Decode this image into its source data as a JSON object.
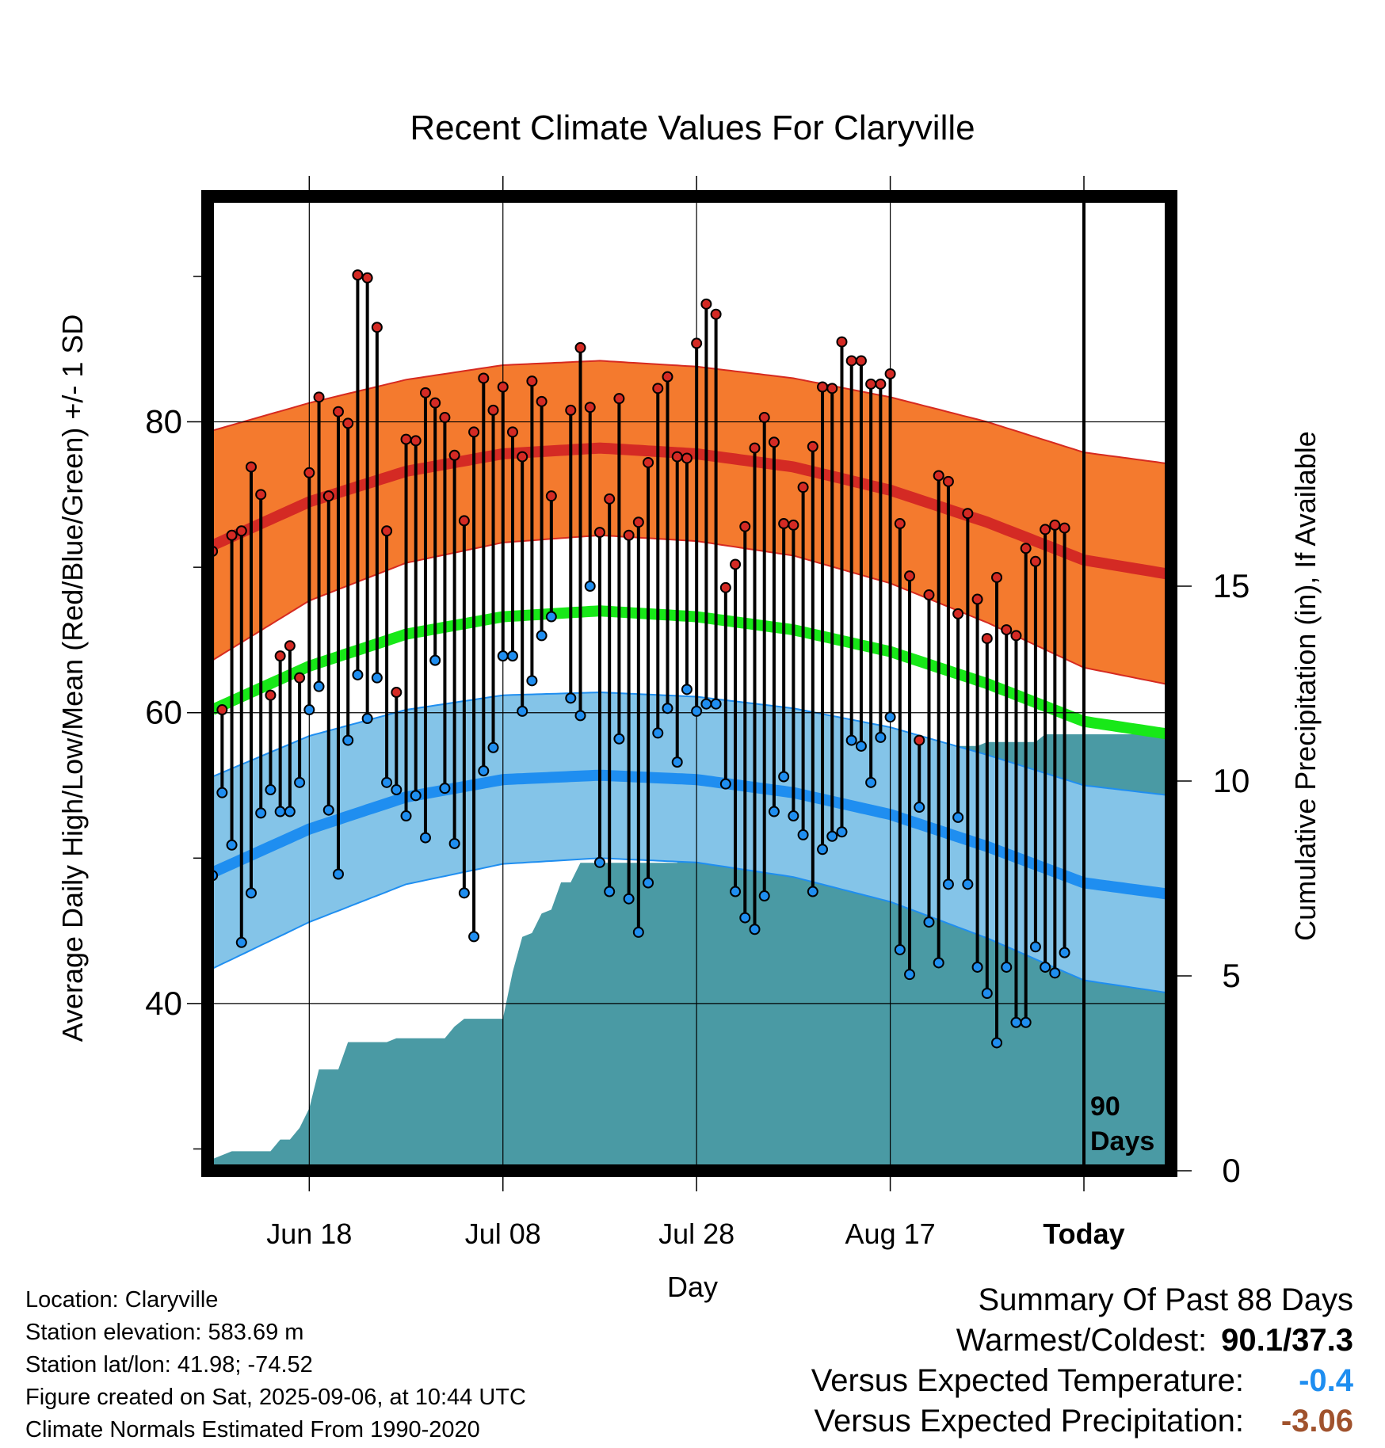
{
  "chart_data": {
    "type": "line",
    "title": "Recent Climate Values For Claryville",
    "xlabel": "Day",
    "ylabel": "Average Daily High/Low/Mean (Red/Blue/Green) +/- 1 SD",
    "y2label": "Cumulative Precipitation (in), If Available",
    "x_tick_labels": [
      "Jun 18",
      "Jul 08",
      "Jul 28",
      "Aug 17",
      "Today"
    ],
    "x_tick_days": [
      10,
      30,
      50,
      70,
      90
    ],
    "ylim": [
      28.5,
      95.5
    ],
    "y_ticks": [
      40,
      60,
      80
    ],
    "y_minor_ticks": [
      30,
      50,
      70,
      90
    ],
    "y2lim": [
      0,
      25
    ],
    "y2_ticks": [
      0,
      5,
      10,
      15
    ],
    "xlim": [
      -0.5,
      99
    ],
    "today_day": 90,
    "window_label": "90 Days",
    "grid": true,
    "colors": {
      "high_band": "#f47a2e",
      "high_band_edge": "#d62a20",
      "high_mean": "#d42a24",
      "mean_line": "#18e818",
      "low_band": "#84c4e8",
      "low_band_edge": "#1f8ef0",
      "low_mean": "#1f8ef0",
      "precip": "#4a9aa4",
      "high_marker": "#d42a24",
      "low_marker": "#1f8ef0"
    },
    "normal_high": [
      {
        "day": 0,
        "mean": 71.5,
        "sd": 7.9
      },
      {
        "day": 10,
        "mean": 74.5,
        "sd": 6.8
      },
      {
        "day": 20,
        "mean": 76.6,
        "sd": 6.3
      },
      {
        "day": 30,
        "mean": 77.8,
        "sd": 6.1
      },
      {
        "day": 40,
        "mean": 78.2,
        "sd": 6.0
      },
      {
        "day": 50,
        "mean": 77.8,
        "sd": 6.0
      },
      {
        "day": 60,
        "mean": 76.9,
        "sd": 6.1
      },
      {
        "day": 70,
        "mean": 75.3,
        "sd": 6.4
      },
      {
        "day": 80,
        "mean": 73.1,
        "sd": 6.9
      },
      {
        "day": 90,
        "mean": 70.5,
        "sd": 7.4
      },
      {
        "day": 99,
        "mean": 69.5,
        "sd": 7.6
      }
    ],
    "normal_low": [
      {
        "day": 0,
        "mean": 49.0,
        "sd": 6.6
      },
      {
        "day": 10,
        "mean": 52.0,
        "sd": 6.4
      },
      {
        "day": 20,
        "mean": 54.2,
        "sd": 6.0
      },
      {
        "day": 30,
        "mean": 55.4,
        "sd": 5.8
      },
      {
        "day": 40,
        "mean": 55.7,
        "sd": 5.7
      },
      {
        "day": 50,
        "mean": 55.4,
        "sd": 5.7
      },
      {
        "day": 60,
        "mean": 54.5,
        "sd": 5.8
      },
      {
        "day": 70,
        "mean": 53.0,
        "sd": 6.0
      },
      {
        "day": 80,
        "mean": 50.8,
        "sd": 6.3
      },
      {
        "day": 90,
        "mean": 48.3,
        "sd": 6.7
      },
      {
        "day": 99,
        "mean": 47.5,
        "sd": 6.8
      }
    ],
    "normal_mean": [
      {
        "day": 0,
        "mean": 60.2
      },
      {
        "day": 10,
        "mean": 63.2
      },
      {
        "day": 20,
        "mean": 65.4
      },
      {
        "day": 30,
        "mean": 66.6
      },
      {
        "day": 40,
        "mean": 67.0
      },
      {
        "day": 50,
        "mean": 66.6
      },
      {
        "day": 60,
        "mean": 65.7
      },
      {
        "day": 70,
        "mean": 64.2
      },
      {
        "day": 80,
        "mean": 62.0
      },
      {
        "day": 90,
        "mean": 59.4
      },
      {
        "day": 99,
        "mean": 58.5
      }
    ],
    "daily": [
      {
        "day": 0,
        "high": 71.1,
        "low": 48.8
      },
      {
        "day": 1,
        "high": 60.2,
        "low": 54.5
      },
      {
        "day": 2,
        "high": 72.2,
        "low": 50.9
      },
      {
        "day": 3,
        "high": 72.5,
        "low": 44.2
      },
      {
        "day": 4,
        "high": 76.9,
        "low": 47.6
      },
      {
        "day": 5,
        "high": 75.0,
        "low": 53.1
      },
      {
        "day": 6,
        "high": 61.2,
        "low": 54.7
      },
      {
        "day": 7,
        "high": 63.9,
        "low": 53.2
      },
      {
        "day": 8,
        "high": 64.6,
        "low": 53.2
      },
      {
        "day": 9,
        "high": 62.4,
        "low": 55.2
      },
      {
        "day": 10,
        "high": 76.5,
        "low": 60.2
      },
      {
        "day": 11,
        "high": 81.7,
        "low": 61.8
      },
      {
        "day": 12,
        "high": 74.9,
        "low": 53.3
      },
      {
        "day": 13,
        "high": 80.7,
        "low": 48.9
      },
      {
        "day": 14,
        "high": 79.9,
        "low": 58.1
      },
      {
        "day": 15,
        "high": 90.1,
        "low": 62.6
      },
      {
        "day": 16,
        "high": 89.9,
        "low": 59.6
      },
      {
        "day": 17,
        "high": 86.5,
        "low": 62.4
      },
      {
        "day": 18,
        "high": 72.5,
        "low": 55.2
      },
      {
        "day": 19,
        "high": 61.4,
        "low": 54.7
      },
      {
        "day": 20,
        "high": 78.8,
        "low": 52.9
      },
      {
        "day": 21,
        "high": 78.7,
        "low": 54.3
      },
      {
        "day": 22,
        "high": 82.0,
        "low": 51.4
      },
      {
        "day": 23,
        "high": 81.3,
        "low": 63.6
      },
      {
        "day": 24,
        "high": 80.3,
        "low": 54.8
      },
      {
        "day": 25,
        "high": 77.7,
        "low": 51.0
      },
      {
        "day": 26,
        "high": 73.2,
        "low": 47.6
      },
      {
        "day": 27,
        "high": 79.3,
        "low": 44.6
      },
      {
        "day": 28,
        "high": 83.0,
        "low": 56.0
      },
      {
        "day": 29,
        "high": 80.8,
        "low": 57.6
      },
      {
        "day": 30,
        "high": 82.4,
        "low": 63.9
      },
      {
        "day": 31,
        "high": 79.3,
        "low": 63.9
      },
      {
        "day": 32,
        "high": 77.6,
        "low": 60.1
      },
      {
        "day": 33,
        "high": 82.8,
        "low": 62.2
      },
      {
        "day": 34,
        "high": 81.4,
        "low": 65.3
      },
      {
        "day": 35,
        "high": 74.9,
        "low": 66.6
      },
      {
        "day": 37,
        "high": 80.8,
        "low": 61.0
      },
      {
        "day": 38,
        "high": 85.1,
        "low": 59.8
      },
      {
        "day": 39,
        "high": 81.0,
        "low": 68.7
      },
      {
        "day": 40,
        "high": 72.4,
        "low": 49.7
      },
      {
        "day": 41,
        "high": 74.7,
        "low": 47.7
      },
      {
        "day": 42,
        "high": 81.6,
        "low": 58.2
      },
      {
        "day": 43,
        "high": 72.2,
        "low": 47.2
      },
      {
        "day": 44,
        "high": 73.1,
        "low": 44.9
      },
      {
        "day": 45,
        "high": 77.2,
        "low": 48.3
      },
      {
        "day": 46,
        "high": 82.3,
        "low": 58.6
      },
      {
        "day": 47,
        "high": 83.1,
        "low": 60.3
      },
      {
        "day": 48,
        "high": 77.6,
        "low": 56.6
      },
      {
        "day": 49,
        "high": 77.5,
        "low": 61.6
      },
      {
        "day": 50,
        "high": 85.4,
        "low": 60.1
      },
      {
        "day": 51,
        "high": 88.1,
        "low": 60.6
      },
      {
        "day": 52,
        "high": 87.4,
        "low": 60.6
      },
      {
        "day": 53,
        "high": 68.6,
        "low": 55.1
      },
      {
        "day": 54,
        "high": 70.2,
        "low": 47.7
      },
      {
        "day": 55,
        "high": 72.8,
        "low": 45.9
      },
      {
        "day": 56,
        "high": 78.2,
        "low": 45.1
      },
      {
        "day": 57,
        "high": 80.3,
        "low": 47.4
      },
      {
        "day": 58,
        "high": 78.6,
        "low": 53.2
      },
      {
        "day": 59,
        "high": 73.0,
        "low": 55.6
      },
      {
        "day": 60,
        "high": 72.9,
        "low": 52.9
      },
      {
        "day": 61,
        "high": 75.5,
        "low": 51.6
      },
      {
        "day": 62,
        "high": 78.3,
        "low": 47.7
      },
      {
        "day": 63,
        "high": 82.4,
        "low": 50.6
      },
      {
        "day": 64,
        "high": 82.3,
        "low": 51.5
      },
      {
        "day": 65,
        "high": 85.5,
        "low": 51.8
      },
      {
        "day": 66,
        "high": 84.2,
        "low": 58.1
      },
      {
        "day": 67,
        "high": 84.2,
        "low": 57.7
      },
      {
        "day": 68,
        "high": 82.6,
        "low": 55.2
      },
      {
        "day": 69,
        "high": 82.6,
        "low": 58.3
      },
      {
        "day": 70,
        "high": 83.3,
        "low": 59.7
      },
      {
        "day": 71,
        "high": 73.0,
        "low": 43.7
      },
      {
        "day": 72,
        "high": 69.4,
        "low": 42.0
      },
      {
        "day": 73,
        "high": 58.1,
        "low": 53.5
      },
      {
        "day": 74,
        "high": 68.1,
        "low": 45.6
      },
      {
        "day": 75,
        "high": 76.3,
        "low": 42.8
      },
      {
        "day": 76,
        "high": 75.9,
        "low": 48.2
      },
      {
        "day": 77,
        "high": 66.8,
        "low": 52.8
      },
      {
        "day": 78,
        "high": 73.7,
        "low": 48.2
      },
      {
        "day": 79,
        "high": 67.8,
        "low": 42.5
      },
      {
        "day": 80,
        "high": 65.1,
        "low": 40.7
      },
      {
        "day": 81,
        "high": 69.3,
        "low": 37.3
      },
      {
        "day": 82,
        "high": 65.7,
        "low": 42.5
      },
      {
        "day": 83,
        "high": 65.3,
        "low": 38.7
      },
      {
        "day": 84,
        "high": 71.3,
        "low": 38.7
      },
      {
        "day": 85,
        "high": 70.4,
        "low": 43.9
      },
      {
        "day": 86,
        "high": 72.6,
        "low": 42.5
      },
      {
        "day": 87,
        "high": 72.9,
        "low": 42.1
      },
      {
        "day": 88,
        "high": 72.7,
        "low": 43.5
      }
    ],
    "cumulative_precip": [
      {
        "day": 0,
        "value": 0.3
      },
      {
        "day": 2,
        "value": 0.5
      },
      {
        "day": 6,
        "value": 0.5
      },
      {
        "day": 7,
        "value": 0.8
      },
      {
        "day": 8,
        "value": 0.8
      },
      {
        "day": 9,
        "value": 1.1
      },
      {
        "day": 10,
        "value": 1.6
      },
      {
        "day": 11,
        "value": 2.6
      },
      {
        "day": 13,
        "value": 2.6
      },
      {
        "day": 14,
        "value": 3.3
      },
      {
        "day": 18,
        "value": 3.3
      },
      {
        "day": 19,
        "value": 3.4
      },
      {
        "day": 24,
        "value": 3.4
      },
      {
        "day": 25,
        "value": 3.7
      },
      {
        "day": 26,
        "value": 3.9
      },
      {
        "day": 30,
        "value": 3.9
      },
      {
        "day": 31,
        "value": 5.1
      },
      {
        "day": 32,
        "value": 6.0
      },
      {
        "day": 33,
        "value": 6.1
      },
      {
        "day": 34,
        "value": 6.6
      },
      {
        "day": 35,
        "value": 6.7
      },
      {
        "day": 36,
        "value": 7.4
      },
      {
        "day": 37,
        "value": 7.4
      },
      {
        "day": 38,
        "value": 7.9
      },
      {
        "day": 48,
        "value": 7.9
      },
      {
        "day": 49,
        "value": 8.3
      },
      {
        "day": 51,
        "value": 8.3
      },
      {
        "day": 52,
        "value": 8.3
      },
      {
        "day": 53,
        "value": 9.7
      },
      {
        "day": 54,
        "value": 9.8
      },
      {
        "day": 60,
        "value": 9.8
      },
      {
        "day": 61,
        "value": 10.4
      },
      {
        "day": 69,
        "value": 10.5
      },
      {
        "day": 70,
        "value": 10.5
      },
      {
        "day": 71,
        "value": 10.6
      },
      {
        "day": 72,
        "value": 10.6
      },
      {
        "day": 73,
        "value": 10.9
      },
      {
        "day": 79,
        "value": 10.9
      },
      {
        "day": 80,
        "value": 11.0
      },
      {
        "day": 81,
        "value": 11.0
      },
      {
        "day": 82,
        "value": 11.0
      },
      {
        "day": 85,
        "value": 11.0
      },
      {
        "day": 86,
        "value": 11.2
      },
      {
        "day": 99,
        "value": 11.2
      }
    ]
  },
  "info": {
    "location": "Location: Claryville",
    "elevation": "Station elevation: 583.69 m",
    "latlon": "Station lat/lon: 41.98; -74.52",
    "created": "Figure created on Sat, 2025-09-06, at 10:44 UTC",
    "normals": "Climate Normals Estimated From 1990-2020"
  },
  "summary": {
    "title": "Summary Of Past 88 Days",
    "warmest_coldest_label": "Warmest/Coldest:",
    "warmest_coldest_value": "90.1/37.3",
    "temp_label": "Versus Expected Temperature:",
    "temp_value": "-0.4",
    "temp_color": "#1f8ef0",
    "precip_label": "Versus Expected Precipitation:",
    "precip_value": "-3.06",
    "precip_color": "#a0522d"
  }
}
